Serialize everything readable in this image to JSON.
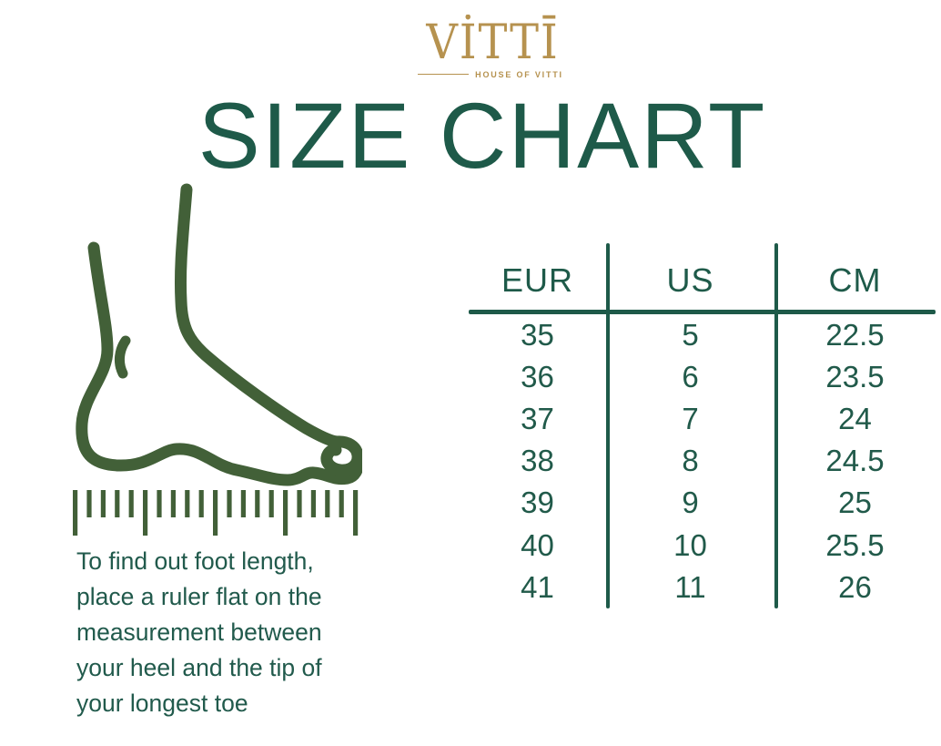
{
  "logo": {
    "brand": "VITTI",
    "brand_display": "VİTTĪ",
    "tagline": "HOUSE OF VITTI"
  },
  "title": "SIZE CHART",
  "instructions": {
    "lines": [
      "To find out foot length,",
      "place a ruler flat on the",
      "measurement between",
      "your heel and the tip of",
      "your longest toe"
    ]
  },
  "size_table": {
    "headers": [
      "EUR",
      "US",
      "CM"
    ],
    "rows": [
      [
        "35",
        "5",
        "22.5"
      ],
      [
        "36",
        "6",
        "23.5"
      ],
      [
        "37",
        "7",
        "24"
      ],
      [
        "38",
        "8",
        "24.5"
      ],
      [
        "39",
        "9",
        "25"
      ],
      [
        "40",
        "10",
        "25.5"
      ],
      [
        "41",
        "11",
        "26"
      ]
    ]
  },
  "icons": {
    "foot_ruler": "foot-side-profile-with-measuring-ruler"
  },
  "colors": {
    "text_green": "#215a4a",
    "table_green": "#1e5a49",
    "illustration_green": "#426038",
    "gold": "#b6924f",
    "background": "#ffffff"
  }
}
